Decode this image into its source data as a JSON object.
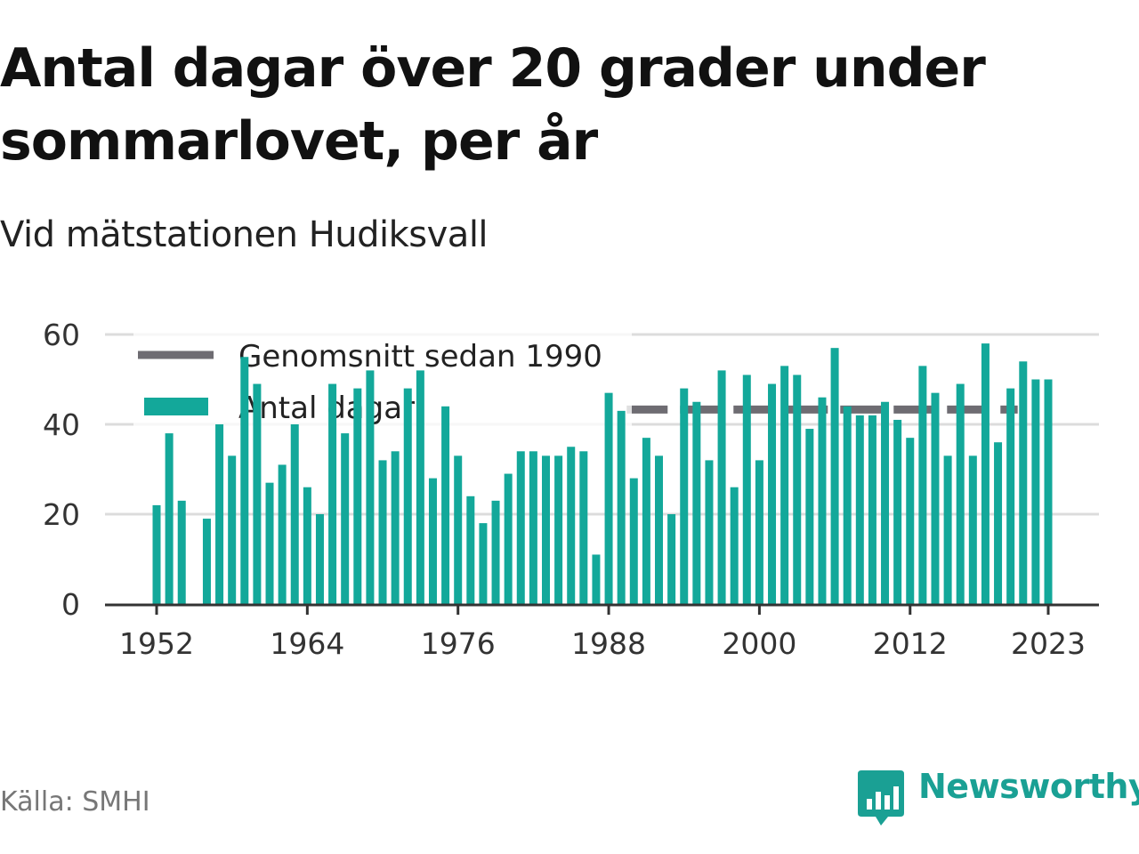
{
  "title": "Antal dagar över 20 grader under sommarlovet, per år",
  "subtitle": "Vid mätstationen Hudiksvall",
  "source": "Källa: SMHI",
  "brand": "Newsworthy",
  "colors": {
    "bar": "#13a89a",
    "average": "#6e6c72",
    "grid": "#dcdcdc",
    "axis": "#333333"
  },
  "chart_data": {
    "type": "bar",
    "title": "Antal dagar över 20 grader under sommarlovet, per år",
    "xlabel": "",
    "ylabel": "",
    "ylim": [
      0,
      60
    ],
    "xlim": [
      1952,
      2023
    ],
    "x_ticks": [
      1952,
      1964,
      1976,
      1988,
      2000,
      2012,
      2023
    ],
    "y_ticks": [
      0,
      20,
      40,
      60
    ],
    "grid": "horizontal",
    "legend_position": "top-left",
    "series": [
      {
        "name": "Antal dagar",
        "x": [
          1952,
          1953,
          1954,
          1956,
          1957,
          1958,
          1959,
          1960,
          1961,
          1962,
          1963,
          1964,
          1965,
          1966,
          1967,
          1968,
          1969,
          1970,
          1971,
          1972,
          1973,
          1974,
          1975,
          1976,
          1977,
          1978,
          1979,
          1980,
          1981,
          1982,
          1983,
          1984,
          1985,
          1986,
          1987,
          1988,
          1989,
          1990,
          1991,
          1992,
          1993,
          1994,
          1995,
          1996,
          1997,
          1998,
          1999,
          2000,
          2001,
          2002,
          2003,
          2004,
          2005,
          2006,
          2007,
          2008,
          2009,
          2010,
          2011,
          2012,
          2013,
          2014,
          2015,
          2016,
          2017,
          2018,
          2019,
          2020,
          2021,
          2022,
          2023
        ],
        "values": [
          22,
          38,
          23,
          19,
          40,
          33,
          55,
          49,
          27,
          31,
          40,
          26,
          20,
          49,
          38,
          48,
          52,
          32,
          34,
          48,
          52,
          28,
          44,
          33,
          24,
          18,
          23,
          29,
          34,
          34,
          33,
          33,
          35,
          34,
          11,
          47,
          43,
          28,
          37,
          33,
          20,
          48,
          45,
          32,
          52,
          26,
          51,
          32,
          49,
          53,
          51,
          39,
          46,
          57,
          44,
          42,
          42,
          45,
          41,
          37,
          53,
          47,
          33,
          49,
          33,
          58,
          36,
          48,
          54,
          50,
          50
        ]
      },
      {
        "name": "Genomsnitt sedan 1990",
        "type": "line",
        "x": [
          1990,
          2020
        ],
        "values": [
          43.3,
          43.3
        ]
      }
    ]
  }
}
